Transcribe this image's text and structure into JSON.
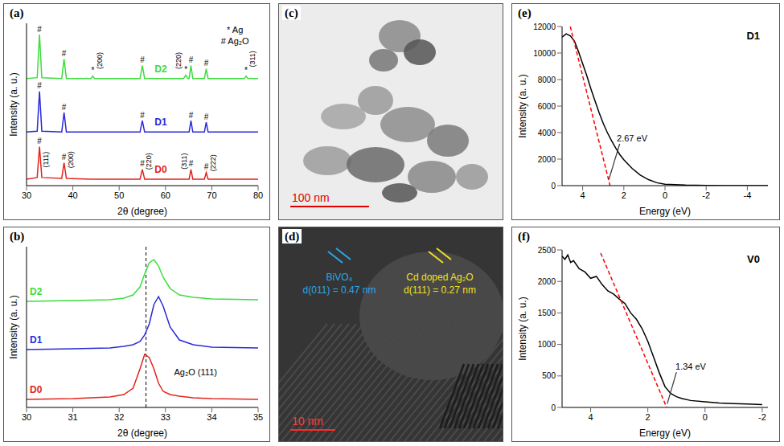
{
  "chart_data": [
    {
      "panel": "(a)",
      "type": "line",
      "x_label": "2θ (degree)",
      "y_label": "Intensity (a. u.)",
      "xlim": [
        30,
        80
      ],
      "xticks": [
        30,
        40,
        50,
        60,
        70,
        80
      ],
      "ylim": [
        0,
        100
      ],
      "tick_labels": "x",
      "x": [
        30,
        32.3,
        32.8,
        33.3,
        37.6,
        38.1,
        38.6,
        43.9,
        44.3,
        44.7,
        54.5,
        55,
        55.5,
        59,
        63.9,
        64.4,
        64.8,
        65.1,
        65.5,
        65.9,
        68.4,
        68.8,
        69.2,
        77,
        77.4,
        77.8,
        80
      ],
      "series": [
        {
          "name": "D0",
          "color": "#e3241b",
          "values": [
            4,
            5,
            24,
            5,
            4.5,
            14,
            4.5,
            4,
            4,
            4,
            4,
            10,
            4,
            4,
            4,
            4,
            4,
            4,
            10,
            4,
            4,
            8,
            4,
            4,
            4,
            4,
            4
          ]
        },
        {
          "name": "D1",
          "color": "#2a2ad8",
          "values": [
            33,
            33.5,
            58,
            33.5,
            33,
            45,
            33,
            33,
            33,
            33,
            33,
            40,
            33,
            33,
            33,
            33,
            33,
            33,
            40,
            33,
            33,
            39,
            33,
            33,
            33,
            33,
            33
          ]
        },
        {
          "name": "D2",
          "color": "#3ddc3d",
          "values": [
            66,
            66.5,
            93,
            66.5,
            66,
            78,
            66,
            66,
            67.5,
            66,
            66,
            74,
            66,
            66,
            66,
            68,
            66,
            66,
            74,
            66,
            66,
            72,
            66,
            66,
            67.5,
            66,
            66
          ]
        }
      ],
      "annotations": [
        {
          "text": "#",
          "x": 32.8,
          "y": 27.5
        },
        {
          "text": "#",
          "x": 38.1,
          "y": 17.5
        },
        {
          "text": "#",
          "x": 55,
          "y": 13.5
        },
        {
          "text": "#",
          "x": 65.5,
          "y": 13.5
        },
        {
          "text": "#",
          "x": 68.8,
          "y": 11.5
        },
        {
          "text": "#",
          "x": 32.8,
          "y": 61.5
        },
        {
          "text": "#",
          "x": 38.1,
          "y": 48.5
        },
        {
          "text": "#",
          "x": 55,
          "y": 43.5
        },
        {
          "text": "#",
          "x": 65.5,
          "y": 43.5
        },
        {
          "text": "#",
          "x": 68.8,
          "y": 42.5
        },
        {
          "text": "#",
          "x": 32.8,
          "y": 96.5
        },
        {
          "text": "#",
          "x": 38.1,
          "y": 81.5
        },
        {
          "text": "#",
          "x": 55,
          "y": 77.5
        },
        {
          "text": "#",
          "x": 65.5,
          "y": 77.5
        },
        {
          "text": "#",
          "x": 68.8,
          "y": 75.5
        },
        {
          "text": "*",
          "x": 44.3,
          "y": 71
        },
        {
          "text": "*",
          "x": 64.4,
          "y": 71.5
        },
        {
          "text": "*",
          "x": 77.4,
          "y": 71
        },
        {
          "text": "(111)",
          "x": 34.2,
          "y": 16
        },
        {
          "text": "(200)",
          "x": 39.6,
          "y": 16
        },
        {
          "text": "(220)",
          "x": 56.4,
          "y": 15
        },
        {
          "text": "(311)",
          "x": 64,
          "y": 15
        },
        {
          "text": "(222)",
          "x": 70.3,
          "y": 14
        },
        {
          "text": "(200)",
          "x": 45.8,
          "y": 77
        },
        {
          "text": "(220)",
          "x": 62.8,
          "y": 77
        },
        {
          "text": "(311)",
          "x": 78.8,
          "y": 78
        },
        {
          "text": "* Ag",
          "x": 75,
          "y": 96
        },
        {
          "text": "# Ag₂O",
          "x": 75,
          "y": 89
        }
      ]
    },
    {
      "panel": "(b)",
      "type": "line",
      "x_label": "2θ (degree)",
      "y_label": "Intensity (a. u.)",
      "xlim": [
        30,
        35
      ],
      "xticks": [
        30,
        31,
        32,
        33,
        34,
        35
      ],
      "ylim": [
        0,
        100
      ],
      "tick_labels": "x",
      "x": [
        30,
        31,
        31.8,
        32.1,
        32.3,
        32.45,
        32.55,
        32.65,
        32.75,
        32.85,
        32.95,
        33.1,
        33.3,
        33.6,
        34,
        35
      ],
      "series": [
        {
          "name": "D0",
          "color": "#e3241b",
          "values": [
            5,
            5.5,
            6.5,
            8,
            12,
            24,
            33,
            31,
            24,
            15,
            10,
            8,
            7,
            6,
            5.5,
            5
          ]
        },
        {
          "name": "D1",
          "color": "#2a2ad8",
          "values": [
            36,
            36.5,
            37,
            38,
            39,
            41,
            45,
            52,
            64,
            69,
            63,
            50,
            42,
            39,
            37.5,
            37
          ]
        },
        {
          "name": "D2",
          "color": "#3ddc3d",
          "values": [
            66,
            66.5,
            67,
            68,
            70,
            75,
            83,
            90,
            92,
            88,
            81,
            74,
            70,
            68.5,
            67.5,
            67
          ]
        }
      ],
      "vline": {
        "x": 32.58,
        "line_style": "dashed"
      },
      "annotations": [
        {
          "text": "Ag₂O (111)",
          "x": 33.65,
          "y": 22
        }
      ]
    },
    {
      "panel": "(e)",
      "type": "line",
      "title": "D1",
      "x_label": "Energy (eV)",
      "y_label": "Intensity (a. u.)",
      "xlim": [
        5,
        -5
      ],
      "xticks": [
        4,
        2,
        0,
        -2,
        -4
      ],
      "ylim": [
        0,
        12000
      ],
      "yticks": [
        0,
        2000,
        4000,
        6000,
        8000,
        10000,
        12000
      ],
      "x": [
        5,
        4.8,
        4.6,
        4.4,
        4.2,
        4,
        3.8,
        3.6,
        3.4,
        3.2,
        3,
        2.8,
        2.6,
        2.4,
        2.2,
        2,
        1.6,
        1.2,
        0.8,
        0.4,
        0,
        -1,
        -2,
        -3,
        -4,
        -5
      ],
      "series": [
        {
          "color": "#000000",
          "values": [
            11200,
            11450,
            11300,
            10900,
            10100,
            9200,
            8300,
            7300,
            6400,
            5500,
            4700,
            4000,
            3400,
            2850,
            2350,
            1950,
            1300,
            800,
            450,
            220,
            100,
            40,
            15,
            5,
            0,
            0
          ]
        },
        {
          "color": "#ff0000",
          "line_style": "dashed",
          "x": [
            4.6,
            2.67
          ],
          "values": [
            12000,
            0
          ]
        }
      ],
      "annotations": [
        {
          "text": "2.67 eV",
          "x": 1.6,
          "y": 3600,
          "arrow_from": [
            2.2,
            3150
          ],
          "arrow_to": [
            2.72,
            500
          ]
        }
      ]
    },
    {
      "panel": "(f)",
      "type": "line",
      "title": "V0",
      "x_label": "Energy (eV)",
      "y_label": "Intensity (a. u.)",
      "xlim": [
        5,
        -2.2
      ],
      "xticks": [
        4,
        2,
        0,
        -2
      ],
      "ylim": [
        0,
        2500
      ],
      "yticks": [
        0,
        500,
        1000,
        1500,
        2000,
        2500
      ],
      "x": [
        5,
        4.9,
        4.8,
        4.7,
        4.6,
        4.4,
        4.2,
        4,
        3.8,
        3.6,
        3.4,
        3.2,
        3,
        2.8,
        2.6,
        2.4,
        2.2,
        2,
        1.8,
        1.6,
        1.4,
        1.2,
        1,
        0.8,
        0.5,
        0,
        -0.5,
        -1,
        -1.5,
        -2
      ],
      "series": [
        {
          "color": "#000000",
          "values": [
            2400,
            2350,
            2420,
            2300,
            2330,
            2200,
            2150,
            2050,
            2080,
            1950,
            1850,
            1800,
            1720,
            1650,
            1500,
            1400,
            1250,
            1050,
            800,
            550,
            330,
            220,
            170,
            140,
            110,
            90,
            70,
            60,
            55,
            45
          ]
        },
        {
          "color": "#ff0000",
          "line_style": "dashed",
          "x": [
            3.65,
            1.34
          ],
          "values": [
            2450,
            0
          ]
        }
      ],
      "annotations": [
        {
          "text": "1.34 eV",
          "x": 0.5,
          "y": 650,
          "arrow_from": [
            1.0,
            560
          ],
          "arrow_to": [
            1.32,
            60
          ]
        }
      ]
    }
  ],
  "images": [
    {
      "panel": "(c)",
      "scale_bar": "100 nm"
    },
    {
      "panel": "(d)",
      "scale_bar": "10 nm",
      "labels": [
        {
          "lines": [
            "BiVO₄",
            "d(011) = 0.47 nm"
          ],
          "color": "#2aa7e8"
        },
        {
          "lines": [
            "Cd doped Ag₂O",
            "d(111) = 0.27 nm"
          ],
          "color": "#f2e01c"
        }
      ]
    }
  ]
}
